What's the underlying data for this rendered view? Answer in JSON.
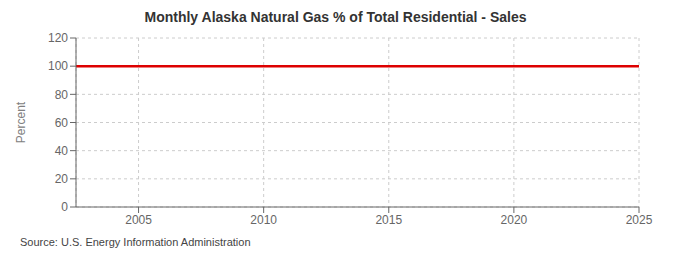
{
  "chart_data": {
    "type": "line",
    "title": "Monthly Alaska Natural Gas % of Total Residential - Sales",
    "ylabel": "Percent",
    "annotations": [
      "Source: U.S. Energy Information Administration"
    ],
    "x": [
      2002.5,
      2025
    ],
    "values": [
      100,
      100
    ],
    "color": "#dd0000",
    "xlim": [
      2002.5,
      2025
    ],
    "xticks": [
      2005,
      2010,
      2015,
      2020,
      2025
    ],
    "ylim": [
      0,
      120
    ],
    "yticks": [
      0,
      20,
      40,
      60,
      80,
      100,
      120
    ],
    "grid": true
  }
}
